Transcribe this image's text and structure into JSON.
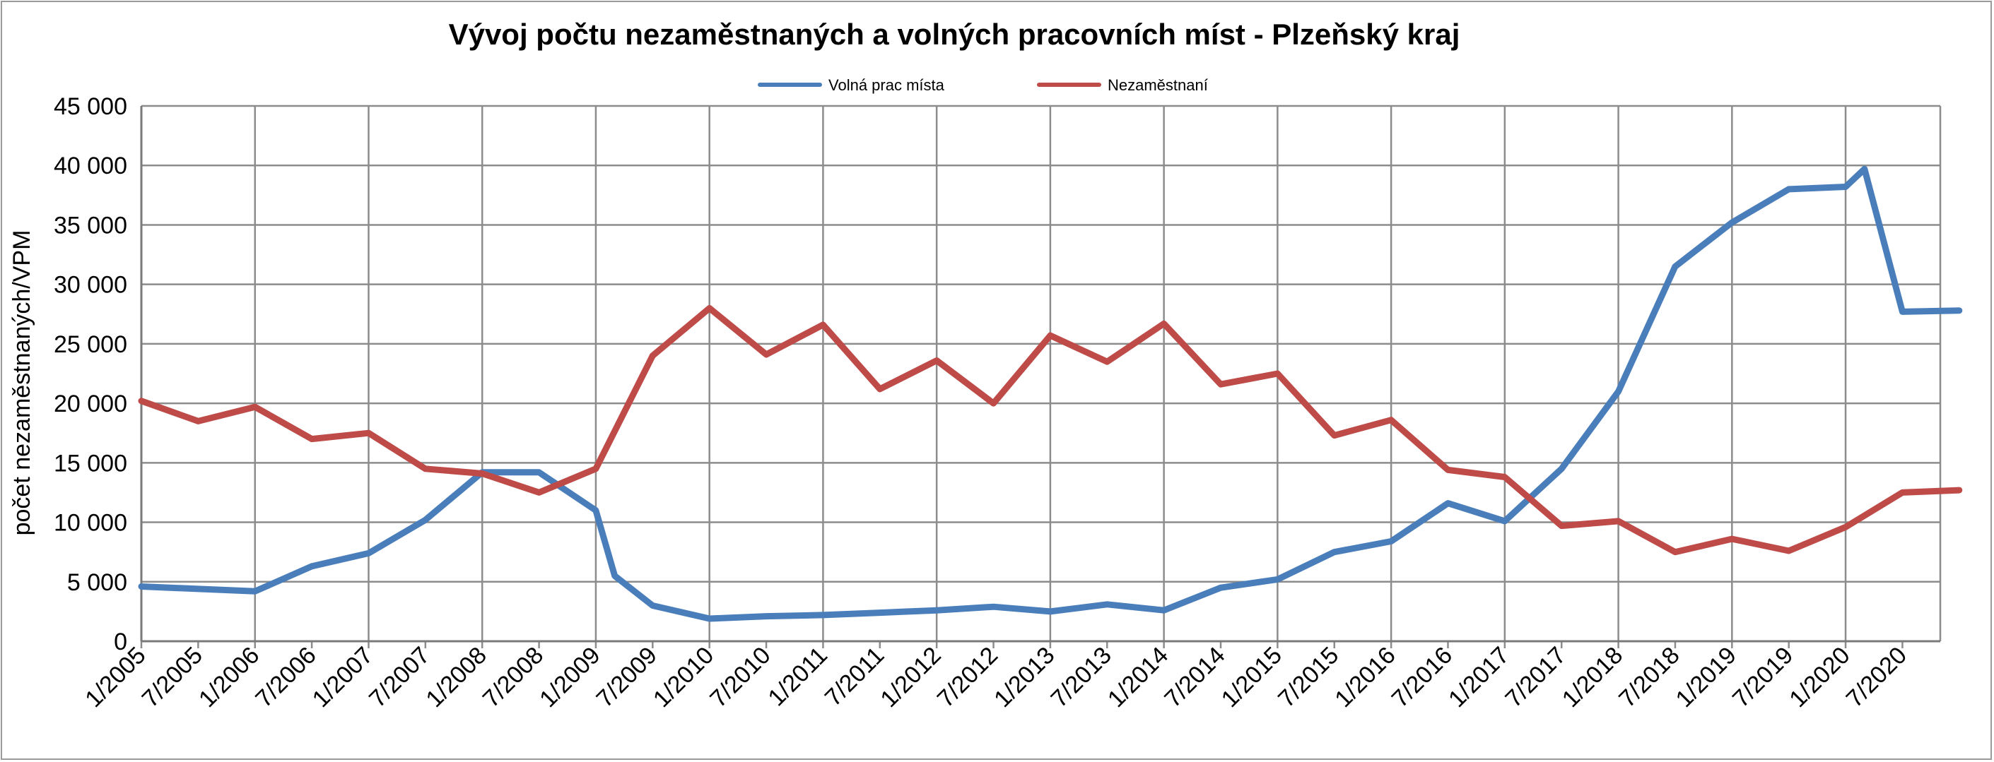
{
  "chart_data": {
    "type": "line",
    "title": "Vývoj počtu nezaměstnaných a volných pracovních míst - Plzeňský kraj",
    "xlabel": "",
    "ylabel": "počet nezaměstnaných/VPM",
    "ylim": [
      0,
      45000
    ],
    "y_ticks": [
      0,
      5000,
      10000,
      15000,
      20000,
      25000,
      30000,
      35000,
      40000,
      45000
    ],
    "y_tick_labels": [
      "0",
      "5 000",
      "10 000",
      "15 000",
      "20 000",
      "25 000",
      "30 000",
      "35 000",
      "40 000",
      "45 000"
    ],
    "x_tick_labels": [
      "1/2005",
      "7/2005",
      "1/2006",
      "7/2006",
      "1/2007",
      "7/2007",
      "1/2008",
      "7/2008",
      "1/2009",
      "7/2009",
      "1/2010",
      "7/2010",
      "1/2011",
      "7/2011",
      "1/2012",
      "7/2012",
      "1/2013",
      "7/2013",
      "1/2014",
      "7/2014",
      "1/2015",
      "7/2015",
      "1/2016",
      "7/2016",
      "1/2017",
      "7/2017",
      "1/2018",
      "7/2018",
      "1/2019",
      "7/2019",
      "1/2020",
      "7/2020"
    ],
    "grid": true,
    "legend_position": "top-center",
    "series": [
      {
        "name": "Volná prac místa",
        "color": "#4a7ebb",
        "points": [
          [
            "1/2005",
            4600
          ],
          [
            "7/2005",
            4400
          ],
          [
            "1/2006",
            4200
          ],
          [
            "7/2006",
            6300
          ],
          [
            "1/2007",
            7400
          ],
          [
            "7/2007",
            10200
          ],
          [
            "1/2008",
            14200
          ],
          [
            "7/2008",
            14200
          ],
          [
            "1/2009",
            11000
          ],
          [
            "3/2009",
            5500
          ],
          [
            "7/2009",
            3000
          ],
          [
            "1/2010",
            1900
          ],
          [
            "7/2010",
            2100
          ],
          [
            "1/2011",
            2200
          ],
          [
            "7/2011",
            2400
          ],
          [
            "1/2012",
            2600
          ],
          [
            "7/2012",
            2900
          ],
          [
            "1/2013",
            2500
          ],
          [
            "7/2013",
            3100
          ],
          [
            "1/2014",
            2600
          ],
          [
            "7/2014",
            4500
          ],
          [
            "1/2015",
            5200
          ],
          [
            "7/2015",
            7500
          ],
          [
            "1/2016",
            8400
          ],
          [
            "7/2016",
            11600
          ],
          [
            "1/2017",
            10100
          ],
          [
            "7/2017",
            14500
          ],
          [
            "1/2018",
            21000
          ],
          [
            "7/2018",
            31500
          ],
          [
            "1/2019",
            35200
          ],
          [
            "7/2019",
            38000
          ],
          [
            "1/2020",
            38200
          ],
          [
            "3/2020",
            39700
          ],
          [
            "7/2020",
            27700
          ],
          [
            "1/2021",
            27800
          ]
        ]
      },
      {
        "name": "Nezaměstnaní",
        "color": "#be4b48",
        "points": [
          [
            "1/2005",
            20200
          ],
          [
            "7/2005",
            18500
          ],
          [
            "1/2006",
            19700
          ],
          [
            "7/2006",
            17000
          ],
          [
            "1/2007",
            17500
          ],
          [
            "7/2007",
            14500
          ],
          [
            "1/2008",
            14100
          ],
          [
            "7/2008",
            12500
          ],
          [
            "1/2009",
            14500
          ],
          [
            "7/2009",
            24000
          ],
          [
            "1/2010",
            28000
          ],
          [
            "7/2010",
            24100
          ],
          [
            "1/2011",
            26600
          ],
          [
            "7/2011",
            21200
          ],
          [
            "1/2012",
            23600
          ],
          [
            "7/2012",
            20000
          ],
          [
            "1/2013",
            25700
          ],
          [
            "7/2013",
            23500
          ],
          [
            "1/2014",
            26700
          ],
          [
            "7/2014",
            21600
          ],
          [
            "1/2015",
            22500
          ],
          [
            "7/2015",
            17300
          ],
          [
            "1/2016",
            18600
          ],
          [
            "7/2016",
            14400
          ],
          [
            "1/2017",
            13800
          ],
          [
            "7/2017",
            9700
          ],
          [
            "1/2018",
            10100
          ],
          [
            "7/2018",
            7500
          ],
          [
            "1/2019",
            8600
          ],
          [
            "7/2019",
            7600
          ],
          [
            "1/2020",
            9600
          ],
          [
            "7/2020",
            12500
          ],
          [
            "1/2021",
            12700
          ]
        ]
      }
    ]
  }
}
